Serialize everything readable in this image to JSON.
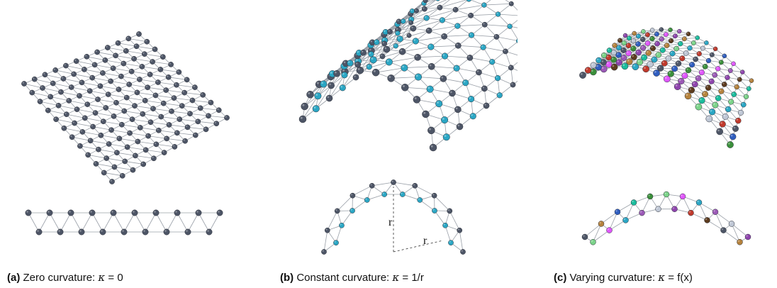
{
  "panels": [
    {
      "label": "(a)",
      "text": "Zero curvature: ",
      "kappa": "κ",
      "equation": " = 0",
      "node_colors": [
        "#4d5566"
      ]
    },
    {
      "label": "(b)",
      "text": "Constant curvature: ",
      "kappa": "κ",
      "equation": " = 1/r",
      "radius_label": "r",
      "node_colors": [
        "#4d5566",
        "#2aa6c4"
      ]
    },
    {
      "label": "(c)",
      "text": "Varying curvature: ",
      "kappa": "κ",
      "equation": " = f(x)",
      "node_colors": [
        "#4d5566",
        "#8e44ad",
        "#2aa6c4",
        "#3a8f3a",
        "#b5823c",
        "#c0392b",
        "#9b59b6",
        "#7bd389",
        "#2f5dbf",
        "#5c3b1e",
        "#bfc7d5",
        "#e056fd",
        "#1abc9c"
      ]
    }
  ]
}
